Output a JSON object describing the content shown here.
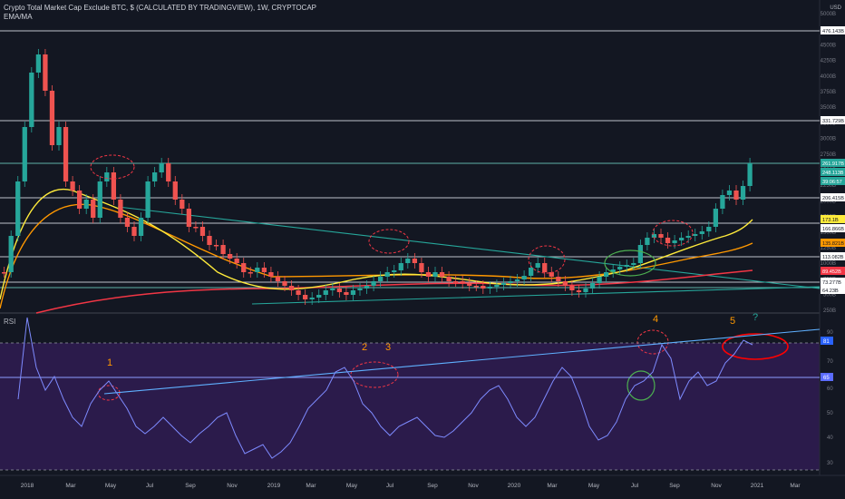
{
  "header": {
    "title": "Crypto Total Market Cap Exclude BTC, $ (CALCULATED BY TRADINGVIEW), 1W, CRYPTOCAP",
    "indicator": "EMA/MA"
  },
  "price_axis": {
    "currency": "USD",
    "ticks": [
      "5000B",
      "4750B",
      "4500B",
      "4250B",
      "4000B",
      "3750B",
      "3500B",
      "3250B",
      "3000B",
      "2750B",
      "2500B",
      "2250B",
      "2000B",
      "1750B",
      "1500B",
      "1250B",
      "1000B",
      "750B",
      "500B",
      "250B"
    ]
  },
  "price_levels": [
    {
      "label": "476.143B",
      "color": "#ffffff",
      "text": "#131722"
    },
    {
      "label": "331.729B",
      "color": "#ffffff",
      "text": "#131722"
    },
    {
      "label": "261.917B",
      "color": "#26a69a",
      "text": "#ffffff"
    },
    {
      "label": "248.113B",
      "color": "#26a69a",
      "text": "#ffffff"
    },
    {
      "label": "39:06:57",
      "color": "#26a69a",
      "text": "#ffffff"
    },
    {
      "label": "206.415B",
      "color": "#ffffff",
      "text": "#131722"
    },
    {
      "label": "173.1B",
      "color": "#ffeb3b",
      "text": "#131722"
    },
    {
      "label": "166.866B",
      "color": "#ffffff",
      "text": "#131722"
    },
    {
      "label": "135.821B",
      "color": "#ff9800",
      "text": "#131722"
    },
    {
      "label": "113.082B",
      "color": "#ffffff",
      "text": "#131722"
    },
    {
      "label": "89.452B",
      "color": "#f23645",
      "text": "#ffffff"
    },
    {
      "label": "73.277B",
      "color": "#ffffff",
      "text": "#131722"
    },
    {
      "label": "64.23B",
      "color": "#ffffff",
      "text": "#131722"
    }
  ],
  "rsi": {
    "label": "RSI",
    "ticks": [
      "90",
      "80",
      "70",
      "60",
      "50",
      "40",
      "30"
    ],
    "tag_upper": "81",
    "tag_lower": "65",
    "annotations": [
      "1",
      "2",
      "3",
      "4",
      "5",
      "?"
    ]
  },
  "time_axis": [
    "2018",
    "Mar",
    "May",
    "Jul",
    "Sep",
    "Nov",
    "2019",
    "Mar",
    "May",
    "Jul",
    "Sep",
    "Nov",
    "2020",
    "Mar",
    "May",
    "Jul",
    "Sep",
    "Nov",
    "2021",
    "Mar"
  ],
  "colors": {
    "bg": "#131722",
    "up": "#26a69a",
    "down": "#ef5350",
    "rsi_fill": "#3f1f6e",
    "rsi_line": "#7e8bff"
  }
}
